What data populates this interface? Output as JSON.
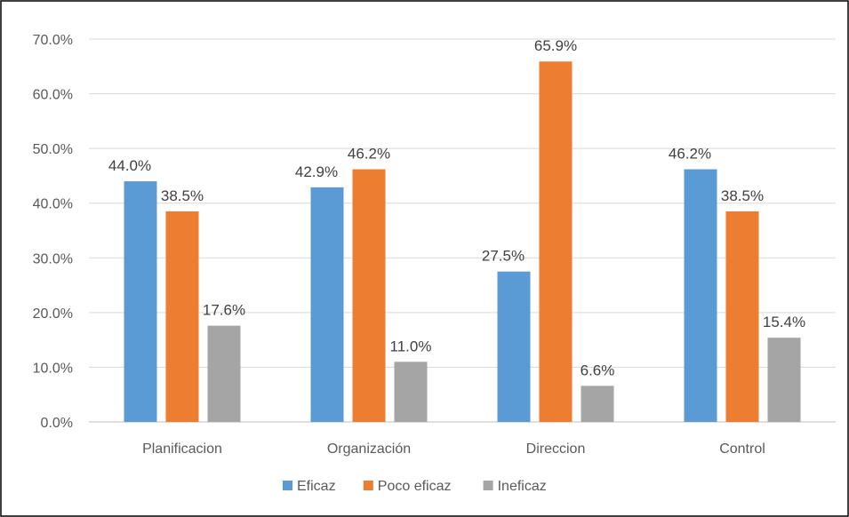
{
  "chart_data": {
    "type": "bar",
    "title": "",
    "xlabel": "",
    "ylabel": "",
    "categories": [
      "Planificacion",
      "Organización",
      "Direccion",
      "Control"
    ],
    "series": [
      {
        "name": "Eficaz",
        "values": [
          44.0,
          42.9,
          27.5,
          46.2
        ],
        "color": "#5B9BD5"
      },
      {
        "name": "Poco eficaz",
        "values": [
          38.5,
          46.2,
          65.9,
          38.5
        ],
        "color": "#ED7D31"
      },
      {
        "name": "Ineficaz",
        "values": [
          17.6,
          11.0,
          6.6,
          15.4
        ],
        "color": "#A5A5A5"
      }
    ],
    "ylim": [
      0,
      70
    ],
    "yticks": [
      0,
      10,
      20,
      30,
      40,
      50,
      60,
      70
    ],
    "ytick_labels": [
      "0.0%",
      "10.0%",
      "20.0%",
      "30.0%",
      "40.0%",
      "50.0%",
      "60.0%",
      "70.0%"
    ],
    "data_labels": [
      [
        "44.0%",
        "42.9%",
        "27.5%",
        "46.2%"
      ],
      [
        "38.5%",
        "46.2%",
        "65.9%",
        "38.5%"
      ],
      [
        "17.6%",
        "11.0%",
        "6.6%",
        "15.4%"
      ]
    ],
    "grid": true,
    "legend_position": "bottom",
    "gridline_color": "#D9D9D9",
    "border_color": "#000000"
  }
}
